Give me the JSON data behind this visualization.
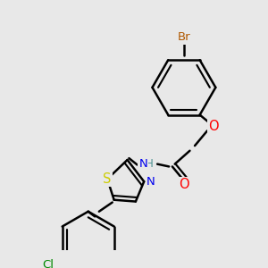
{
  "bg_color": "#e8e8e8",
  "bond_color": "#000000",
  "bond_width": 1.8,
  "atom_colors": {
    "Br": "#b05800",
    "O": "#ff0000",
    "N": "#0000ee",
    "S": "#cccc00",
    "Cl": "#008800",
    "H": "#4a9090",
    "C": "#000000"
  },
  "font_size": 8.5,
  "figsize": [
    3.0,
    3.0
  ],
  "dpi": 100
}
